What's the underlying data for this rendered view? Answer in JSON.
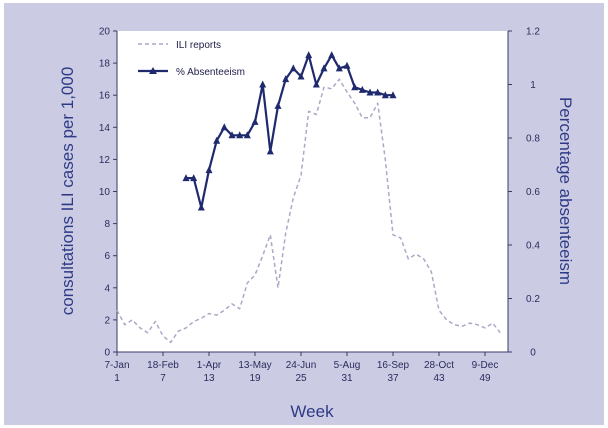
{
  "chart_data": {
    "type": "line",
    "xlabel": "Week",
    "ylabel_left": "consultations ILI cases per 1,000",
    "ylabel_right": "Percentage absenteeism",
    "ylim_left": [
      0,
      20
    ],
    "ylim_right": [
      0,
      1.2
    ],
    "yticks_left": [
      "0",
      "2",
      "4",
      "6",
      "8",
      "10",
      "12",
      "14",
      "16",
      "18",
      "20"
    ],
    "yticks_right": [
      "0",
      "0.2",
      "0.4",
      "0.6",
      "0.8",
      "1",
      "1.2"
    ],
    "xlim": [
      1,
      52
    ],
    "xticks": [
      {
        "week": 1,
        "date": "7-Jan",
        "num": "1"
      },
      {
        "week": 7,
        "date": "18-Feb",
        "num": "7"
      },
      {
        "week": 13,
        "date": "1-Apr",
        "num": "13"
      },
      {
        "week": 19,
        "date": "13-May",
        "num": "19"
      },
      {
        "week": 25,
        "date": "24-Jun",
        "num": "25"
      },
      {
        "week": 31,
        "date": "5-Aug",
        "num": "31"
      },
      {
        "week": 37,
        "date": "16-Sep",
        "num": "37"
      },
      {
        "week": 43,
        "date": "28-Oct",
        "num": "43"
      },
      {
        "week": 49,
        "date": "9-Dec",
        "num": "49"
      }
    ],
    "grid": false,
    "legend_position": "top-left",
    "series": [
      {
        "name": "ILI reports",
        "axis": "left",
        "style": "dashed",
        "color": "#a9aac6",
        "x": [
          1,
          2,
          3,
          4,
          5,
          6,
          7,
          8,
          9,
          10,
          11,
          12,
          13,
          14,
          15,
          16,
          17,
          18,
          19,
          20,
          21,
          22,
          23,
          24,
          25,
          26,
          27,
          28,
          29,
          30,
          31,
          32,
          33,
          34,
          35,
          36,
          37,
          38,
          39,
          40,
          41,
          42,
          43,
          44,
          45,
          46,
          47,
          48,
          49,
          50,
          51
        ],
        "values": [
          2.6,
          1.7,
          2.0,
          1.5,
          1.2,
          1.9,
          1.0,
          0.6,
          1.3,
          1.5,
          1.9,
          2.1,
          2.4,
          2.3,
          2.6,
          3.0,
          2.7,
          4.3,
          4.8,
          6.0,
          7.3,
          4.0,
          7.4,
          9.6,
          11.0,
          15.0,
          14.8,
          16.5,
          16.4,
          17.0,
          16.2,
          15.5,
          14.6,
          14.6,
          15.5,
          12.0,
          7.3,
          7.1,
          5.8,
          6.1,
          5.8,
          5.0,
          2.6,
          2.0,
          1.7,
          1.6,
          1.8,
          1.7,
          1.5,
          1.8,
          1.2
        ]
      },
      {
        "name": "% Absenteeism",
        "axis": "right",
        "style": "solid",
        "color": "#1f2a6e",
        "marker": "triangle",
        "x": [
          10,
          11,
          12,
          13,
          14,
          15,
          16,
          17,
          18,
          19,
          20,
          21,
          22,
          23,
          24,
          25,
          26,
          27,
          28,
          29,
          30,
          31,
          32,
          33,
          34,
          35,
          36,
          37
        ],
        "values": [
          0.65,
          0.65,
          0.54,
          0.68,
          0.79,
          0.84,
          0.81,
          0.81,
          0.81,
          0.86,
          1.0,
          0.75,
          0.92,
          1.02,
          1.06,
          1.03,
          1.11,
          1.0,
          1.06,
          1.11,
          1.06,
          1.07,
          0.99,
          0.98,
          0.97,
          0.97,
          0.96,
          0.96
        ]
      }
    ]
  }
}
